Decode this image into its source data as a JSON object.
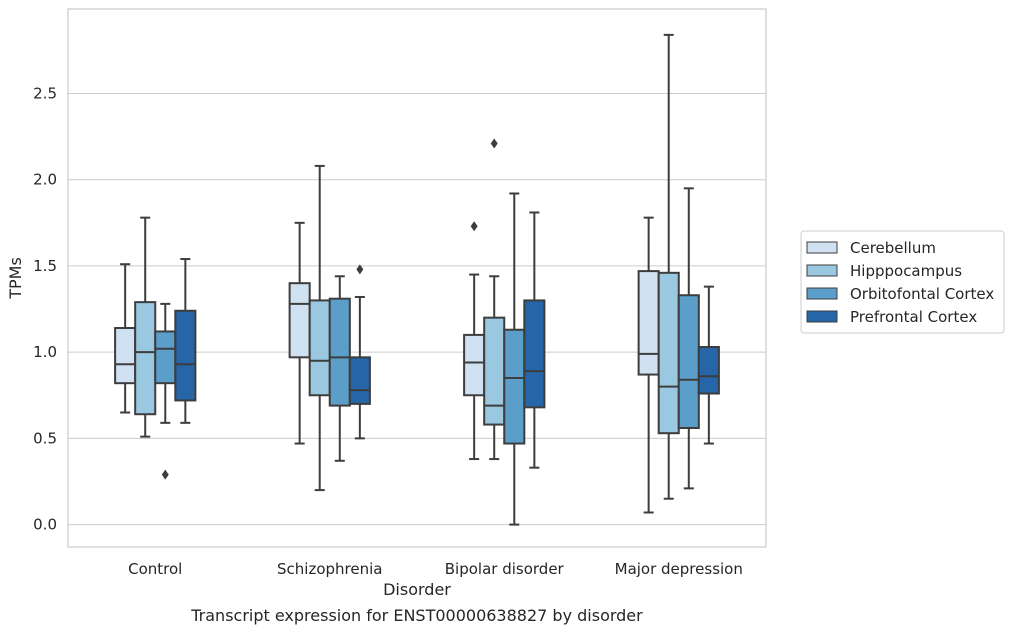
{
  "caption": "Transcript expression for ENST00000638827 by disorder",
  "chart_data": {
    "type": "box",
    "title": "",
    "xlabel": "Disorder",
    "ylabel": "TPMs",
    "ylim": [
      -0.13,
      2.99
    ],
    "yticks": [
      "0.0",
      "0.5",
      "1.0",
      "1.5",
      "2.0",
      "2.5"
    ],
    "categories": [
      "Control",
      "Schizophrenia",
      "Bipolar disorder",
      "Major depression"
    ],
    "grid": "horizontal",
    "legend_position": "right",
    "series": [
      {
        "name": "Cerebellum",
        "color": "#d0e1f2",
        "boxes": [
          {
            "whislo": 0.65,
            "q1": 0.82,
            "med": 0.93,
            "q3": 1.14,
            "whishi": 1.51,
            "fliers": []
          },
          {
            "whislo": 0.47,
            "q1": 0.97,
            "med": 1.28,
            "q3": 1.4,
            "whishi": 1.75,
            "fliers": []
          },
          {
            "whislo": 0.38,
            "q1": 0.75,
            "med": 0.94,
            "q3": 1.1,
            "whishi": 1.45,
            "fliers": [
              1.73
            ]
          },
          {
            "whislo": 0.07,
            "q1": 0.87,
            "med": 0.99,
            "q3": 1.47,
            "whishi": 1.78,
            "fliers": []
          }
        ]
      },
      {
        "name": "Hipppocampus",
        "color": "#9ac8e0",
        "boxes": [
          {
            "whislo": 0.51,
            "q1": 0.64,
            "med": 1.0,
            "q3": 1.29,
            "whishi": 1.78,
            "fliers": []
          },
          {
            "whislo": 0.2,
            "q1": 0.75,
            "med": 0.95,
            "q3": 1.3,
            "whishi": 2.08,
            "fliers": []
          },
          {
            "whislo": 0.38,
            "q1": 0.58,
            "med": 0.69,
            "q3": 1.2,
            "whishi": 1.44,
            "fliers": [
              2.21
            ]
          },
          {
            "whislo": 0.15,
            "q1": 0.53,
            "med": 0.8,
            "q3": 1.46,
            "whishi": 2.84,
            "fliers": []
          }
        ]
      },
      {
        "name": "Orbitofontal Cortex",
        "color": "#5a9ec9",
        "boxes": [
          {
            "whislo": 0.59,
            "q1": 0.82,
            "med": 1.02,
            "q3": 1.12,
            "whishi": 1.28,
            "fliers": [
              0.29
            ]
          },
          {
            "whislo": 0.37,
            "q1": 0.69,
            "med": 0.97,
            "q3": 1.31,
            "whishi": 1.44,
            "fliers": []
          },
          {
            "whislo": 0.0,
            "q1": 0.47,
            "med": 0.85,
            "q3": 1.13,
            "whishi": 1.92,
            "fliers": []
          },
          {
            "whislo": 0.21,
            "q1": 0.56,
            "med": 0.84,
            "q3": 1.33,
            "whishi": 1.95,
            "fliers": []
          }
        ]
      },
      {
        "name": "Prefrontal Cortex",
        "color": "#2565a8",
        "boxes": [
          {
            "whislo": 0.59,
            "q1": 0.72,
            "med": 0.93,
            "q3": 1.24,
            "whishi": 1.54,
            "fliers": []
          },
          {
            "whislo": 0.5,
            "q1": 0.7,
            "med": 0.78,
            "q3": 0.97,
            "whishi": 1.32,
            "fliers": [
              1.48
            ]
          },
          {
            "whislo": 0.33,
            "q1": 0.68,
            "med": 0.89,
            "q3": 1.3,
            "whishi": 1.81,
            "fliers": []
          },
          {
            "whislo": 0.47,
            "q1": 0.76,
            "med": 0.86,
            "q3": 1.03,
            "whishi": 1.38,
            "fliers": []
          }
        ]
      }
    ]
  }
}
